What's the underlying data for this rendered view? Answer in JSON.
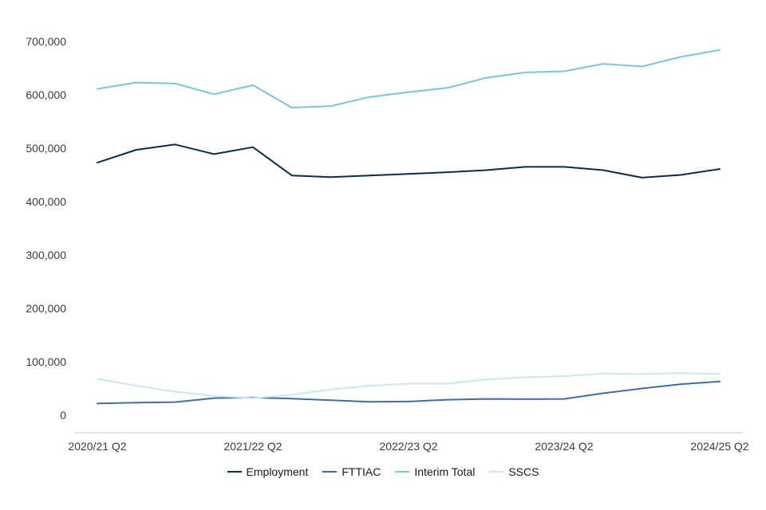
{
  "chart_data": {
    "type": "line",
    "title": "",
    "xlabel": "",
    "ylabel": "",
    "ylim": [
      0,
      700000
    ],
    "yticks": [
      0,
      100000,
      200000,
      300000,
      400000,
      500000,
      600000,
      700000
    ],
    "ytick_labels": [
      "0",
      "100,000",
      "200,000",
      "300,000",
      "400,000",
      "500,000",
      "600,000",
      "700,000"
    ],
    "x": [
      "2020/21 Q2",
      "2020/21 Q3",
      "2020/21 Q4",
      "2021/22 Q1",
      "2021/22 Q2",
      "2021/22 Q3",
      "2021/22 Q4",
      "2022/23 Q1",
      "2022/23 Q2",
      "2022/23 Q3",
      "2022/23 Q4",
      "2023/24 Q1",
      "2023/24 Q2",
      "2023/24 Q3",
      "2023/24 Q4",
      "2024/25 Q1",
      "2024/25 Q2"
    ],
    "xtick_labels": [
      "2020/21 Q2",
      "2021/22 Q2",
      "2022/23 Q2",
      "2023/24 Q2",
      "2024/25 Q2"
    ],
    "grid": false,
    "legend_position": "bottom",
    "series": [
      {
        "name": "Employment",
        "color": "#0b2c4d",
        "values": [
          473000,
          497000,
          507000,
          489000,
          502000,
          449000,
          446000,
          449000,
          452000,
          455000,
          459000,
          465000,
          465000,
          459000,
          445000,
          450000,
          461000
        ]
      },
      {
        "name": "FTTIAC",
        "color": "#3d6fa8",
        "values": [
          22000,
          23500,
          24500,
          32000,
          33000,
          31000,
          28000,
          25000,
          25500,
          29000,
          30500,
          30000,
          30500,
          41000,
          50000,
          58000,
          63000
        ]
      },
      {
        "name": "Interim Total",
        "color": "#7ac4df",
        "values": [
          611000,
          623000,
          621000,
          601000,
          618000,
          576000,
          579000,
          596000,
          605000,
          613000,
          632000,
          642000,
          644000,
          658000,
          653000,
          671000,
          684000
        ]
      },
      {
        "name": "SSCS",
        "color": "#cde6f1",
        "values": [
          68000,
          55000,
          44000,
          36000,
          32000,
          38000,
          48000,
          55000,
          59000,
          59000,
          67000,
          71000,
          73000,
          78000,
          77000,
          79000,
          77000
        ]
      }
    ]
  }
}
